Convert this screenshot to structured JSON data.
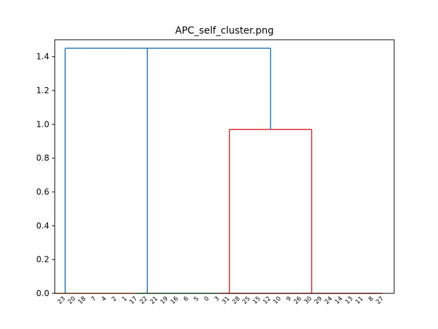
{
  "chart_data": {
    "type": "dendrogram",
    "title": "APC_self_cluster.png",
    "xlabel": "",
    "ylabel": "",
    "ylim": [
      0,
      1.5
    ],
    "yticks": [
      0.0,
      0.2,
      0.4,
      0.6,
      0.8,
      1.0,
      1.2,
      1.4
    ],
    "ytick_labels": [
      "0.0",
      "0.2",
      "0.4",
      "0.6",
      "0.8",
      "1.0",
      "1.2",
      "1.4"
    ],
    "leaves": [
      "23",
      "20",
      "18",
      "7",
      "4",
      "2",
      "1",
      "17",
      "22",
      "21",
      "19",
      "16",
      "6",
      "5",
      "0",
      "3",
      "31",
      "28",
      "25",
      "15",
      "12",
      "10",
      "9",
      "26",
      "30",
      "29",
      "24",
      "14",
      "13",
      "11",
      "8",
      "27"
    ],
    "merge_heights": {
      "low_level": 0.0,
      "red_cluster": 0.97,
      "blue_mid": 1.45,
      "root": 1.45
    },
    "clusters": [
      {
        "color": "#ff7f0e",
        "leaf_start": 0,
        "leaf_end": 7
      },
      {
        "color": "#2ca02c",
        "leaf_start": 8,
        "leaf_end": 15
      },
      {
        "color": "#d62728",
        "leaf_start": 16,
        "leaf_end": 23
      },
      {
        "color": "#d62728",
        "leaf_start": 24,
        "leaf_end": 31
      }
    ],
    "link_color": "#1f77b4",
    "grid": false
  }
}
